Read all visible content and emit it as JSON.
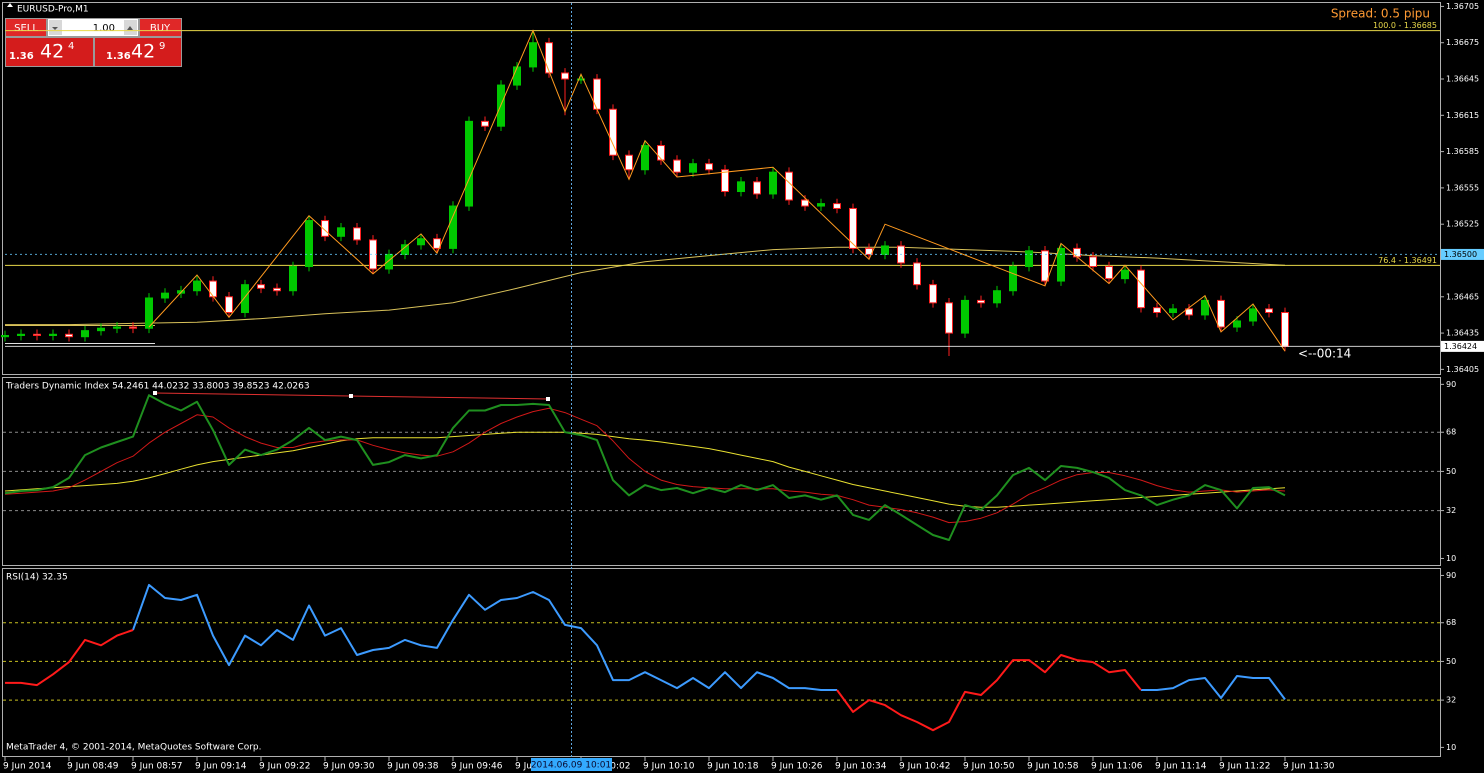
{
  "window_title": "EURUSD-Pro,M1",
  "trade_panel": {
    "sell": "SELL",
    "buy": "BUY",
    "lots": "1.00",
    "bid": {
      "big": "1.36",
      "main": "42",
      "small": "4"
    },
    "ask": {
      "big": "1.36",
      "main": "42",
      "small": "9"
    }
  },
  "spread": "Spread: 0.5 pipu",
  "countdown": "<--00:14",
  "crosshair_label": "2014.06.09 10:01",
  "copyright": "MetaTrader 4, © 2001-2014, MetaQuotes Software Corp.",
  "chart_data": [
    {
      "type": "candlestick",
      "title": "EURUSD-Pro,M1",
      "up_color": "#00c800",
      "down_color": "#ffffff",
      "down_edge": "#ff2020",
      "xlim": [
        0,
        89.6875
      ],
      "xticks": [
        {
          "value": 0,
          "label": "9 Jun 2014"
        },
        {
          "value": 4,
          "label": "9 Jun 08:49"
        },
        {
          "value": 8,
          "label": "9 Jun 08:57"
        },
        {
          "value": 12,
          "label": "9 Jun 09:14"
        },
        {
          "value": 16,
          "label": "9 Jun 09:22"
        },
        {
          "value": 20,
          "label": "9 Jun 09:30"
        },
        {
          "value": 24,
          "label": "9 Jun 09:38"
        },
        {
          "value": 28,
          "label": "9 Jun 09:46"
        },
        {
          "value": 32,
          "label": "9 Jun 09:54"
        },
        {
          "value": 36,
          "label": "9 Jun 10:02"
        },
        {
          "value": 40,
          "label": "9 Jun 10:10"
        },
        {
          "value": 44,
          "label": "9 Jun 10:18"
        },
        {
          "value": 48,
          "label": "9 Jun 10:26"
        },
        {
          "value": 52,
          "label": "9 Jun 10:34"
        },
        {
          "value": 56,
          "label": "9 Jun 10:42"
        },
        {
          "value": 60,
          "label": "9 Jun 10:50"
        },
        {
          "value": 64,
          "label": "9 Jun 10:58"
        },
        {
          "value": 68,
          "label": "9 Jun 11:06"
        },
        {
          "value": 72,
          "label": "9 Jun 11:14"
        },
        {
          "value": 76,
          "label": "9 Jun 11:22"
        },
        {
          "value": 80,
          "label": "9 Jun 11:30"
        }
      ],
      "ylim": [
        1.36402,
        1.36707
      ],
      "yticks": [
        1.36705,
        1.36675,
        1.36645,
        1.36615,
        1.36585,
        1.36555,
        1.36525,
        1.36465,
        1.36435,
        1.36405
      ],
      "grid": false,
      "open": [
        1.36432,
        1.36433,
        1.36434,
        1.36433,
        1.36434,
        1.36432,
        1.36437,
        1.36439,
        1.3644,
        1.36439,
        1.36464,
        1.36468,
        1.3647,
        1.36478,
        1.36465,
        1.36452,
        1.36475,
        1.36472,
        1.3647,
        1.3649,
        1.36528,
        1.36515,
        1.36522,
        1.36512,
        1.36488,
        1.365,
        1.36508,
        1.36513,
        1.36505,
        1.3654,
        1.3661,
        1.36606,
        1.3664,
        1.36655,
        1.36675,
        1.3665,
        1.36645,
        1.36645,
        1.3662,
        1.36582,
        1.3657,
        1.3659,
        1.36578,
        1.36568,
        1.36575,
        1.3657,
        1.36552,
        1.3656,
        1.3655,
        1.36568,
        1.36545,
        1.3654,
        1.36542,
        1.36538,
        1.36505,
        1.365,
        1.36507,
        1.36493,
        1.36475,
        1.3646,
        1.36435,
        1.36462,
        1.3646,
        1.3647,
        1.3649,
        1.36503,
        1.36478,
        1.36505,
        1.36498,
        1.3649,
        1.3648,
        1.36487,
        1.36456,
        1.36452,
        1.36455,
        1.3645,
        1.36462,
        1.3644,
        1.36445,
        1.36455,
        1.36452
      ],
      "high": [
        1.36437,
        1.36438,
        1.36438,
        1.36438,
        1.36438,
        1.36441,
        1.36443,
        1.36444,
        1.36444,
        1.36468,
        1.36472,
        1.36474,
        1.36482,
        1.36482,
        1.36469,
        1.36479,
        1.36479,
        1.36476,
        1.36494,
        1.36532,
        1.36532,
        1.36526,
        1.36526,
        1.36516,
        1.36504,
        1.36512,
        1.36517,
        1.36517,
        1.36544,
        1.36614,
        1.36614,
        1.36644,
        1.36659,
        1.36685,
        1.36679,
        1.36654,
        1.36649,
        1.36649,
        1.36624,
        1.36586,
        1.36594,
        1.36594,
        1.36582,
        1.36579,
        1.36579,
        1.36574,
        1.36564,
        1.36564,
        1.36572,
        1.36572,
        1.36549,
        1.36546,
        1.36546,
        1.36542,
        1.36509,
        1.36511,
        1.36511,
        1.36497,
        1.36479,
        1.36464,
        1.36466,
        1.36466,
        1.36474,
        1.36494,
        1.36507,
        1.36507,
        1.36509,
        1.36509,
        1.36502,
        1.36494,
        1.36491,
        1.36491,
        1.3646,
        1.36459,
        1.36459,
        1.36466,
        1.36466,
        1.36449,
        1.36459,
        1.36459,
        1.36456
      ],
      "low": [
        1.36428,
        1.36429,
        1.36429,
        1.36429,
        1.36428,
        1.36428,
        1.36433,
        1.36435,
        1.36435,
        1.36435,
        1.3646,
        1.36464,
        1.36466,
        1.36461,
        1.36448,
        1.36448,
        1.36468,
        1.36466,
        1.36466,
        1.36486,
        1.36511,
        1.36511,
        1.36508,
        1.36484,
        1.36484,
        1.36496,
        1.36504,
        1.36501,
        1.36501,
        1.36536,
        1.36602,
        1.36602,
        1.36636,
        1.36651,
        1.36646,
        1.36615,
        1.36641,
        1.36616,
        1.36578,
        1.36562,
        1.36566,
        1.36574,
        1.36564,
        1.36564,
        1.36566,
        1.36548,
        1.36548,
        1.36546,
        1.36546,
        1.36541,
        1.36536,
        1.36536,
        1.36534,
        1.36501,
        1.36496,
        1.36496,
        1.36489,
        1.36471,
        1.36456,
        1.36416,
        1.36431,
        1.36456,
        1.36456,
        1.36466,
        1.36486,
        1.36474,
        1.36474,
        1.36494,
        1.36486,
        1.36476,
        1.36476,
        1.36452,
        1.36448,
        1.36448,
        1.36446,
        1.36446,
        1.36436,
        1.36436,
        1.36441,
        1.36448,
        1.3642
      ],
      "close": [
        1.36433,
        1.36434,
        1.36433,
        1.36434,
        1.36432,
        1.36437,
        1.36439,
        1.3644,
        1.36439,
        1.36464,
        1.36468,
        1.3647,
        1.36478,
        1.36465,
        1.36452,
        1.36475,
        1.36472,
        1.3647,
        1.3649,
        1.36528,
        1.36515,
        1.36522,
        1.36512,
        1.36488,
        1.365,
        1.36508,
        1.36513,
        1.36505,
        1.3654,
        1.3661,
        1.36606,
        1.3664,
        1.36655,
        1.36675,
        1.3665,
        1.36645,
        1.36645,
        1.3662,
        1.36582,
        1.3657,
        1.3659,
        1.36578,
        1.36568,
        1.36575,
        1.3657,
        1.36552,
        1.3656,
        1.3655,
        1.36568,
        1.36545,
        1.3654,
        1.36542,
        1.36538,
        1.36505,
        1.365,
        1.36507,
        1.36493,
        1.36475,
        1.3646,
        1.36435,
        1.36462,
        1.3646,
        1.3647,
        1.3649,
        1.36503,
        1.36478,
        1.36505,
        1.36498,
        1.3649,
        1.3648,
        1.36487,
        1.36456,
        1.36452,
        1.36455,
        1.3645,
        1.36462,
        1.3644,
        1.36445,
        1.36455,
        1.36452,
        1.36424
      ],
      "ma": {
        "color": "#d9c25a",
        "x": [
          0,
          4,
          8,
          12,
          16,
          20,
          24,
          28,
          32,
          36,
          40,
          44,
          48,
          52,
          56,
          60,
          64,
          68,
          72,
          76,
          80
        ],
        "values": [
          1.36442,
          1.36442,
          1.36443,
          1.36444,
          1.36447,
          1.36451,
          1.36454,
          1.3646,
          1.36472,
          1.36485,
          1.36494,
          1.36499,
          1.36504,
          1.36506,
          1.36506,
          1.36504,
          1.36502,
          1.36499,
          1.36497,
          1.36494,
          1.36491
        ]
      },
      "zigzag": {
        "color": "#ff9a1f",
        "x": [
          9,
          12,
          14,
          19,
          23,
          26,
          27,
          33,
          35,
          36,
          39,
          40,
          42,
          48,
          54,
          55,
          65,
          66,
          69,
          70,
          73,
          75,
          76,
          78,
          80
        ],
        "values": [
          1.3644,
          1.36483,
          1.36448,
          1.36532,
          1.36484,
          1.36517,
          1.36501,
          1.36685,
          1.36618,
          1.36649,
          1.36562,
          1.36594,
          1.36564,
          1.36572,
          1.36496,
          1.36525,
          1.36474,
          1.36509,
          1.36476,
          1.36491,
          1.36446,
          1.36466,
          1.36436,
          1.36459,
          1.3642
        ]
      },
      "levels": [
        {
          "value": 1.36685,
          "label": "100.0 - 1.36685",
          "color": "#e8d84a"
        },
        {
          "value": 1.36491,
          "label": "76.4 - 1.36491",
          "color": "#e8d84a"
        }
      ],
      "price_lines": [
        {
          "value": 1.365,
          "label": "1.36500",
          "color": "#66ccff"
        },
        {
          "value": 1.36424,
          "label": "1.36424",
          "color": "#ffffff"
        }
      ]
    },
    {
      "type": "line",
      "title": "Traders Dynamic Index 54.2461 44.0232 33.8003 39.8523 42.0263",
      "ylim": [
        7,
        92
      ],
      "yticks": [
        90,
        68,
        50,
        32,
        10
      ],
      "grid": true,
      "grid_color": "#8a8a8a",
      "series": [
        {
          "color": "#e8e030",
          "values": [
            41,
            41.5,
            42,
            42.5,
            43,
            43.5,
            44,
            44.5,
            45.5,
            47,
            49,
            51,
            53,
            54.5,
            55.5,
            56.5,
            57.5,
            58.5,
            59.5,
            61,
            62.5,
            64,
            65,
            65.5,
            65.5,
            65.5,
            65.5,
            65.5,
            66,
            66.5,
            67,
            67.5,
            68,
            68,
            68,
            68,
            67.5,
            67,
            66,
            65,
            64.4,
            63.5,
            62.5,
            61.5,
            60.5,
            59,
            57.5,
            56,
            54.5,
            52,
            50,
            48,
            46,
            44,
            42.5,
            41,
            39.5,
            38,
            36.5,
            35,
            34,
            33.5,
            33.5,
            34,
            34.5,
            35,
            35.5,
            36,
            36.5,
            37,
            37.5,
            38,
            38.5,
            39,
            39.5,
            40,
            40.5,
            41,
            41.5,
            42,
            42.5
          ]
        },
        {
          "color": "#d01818",
          "values": [
            39.5,
            40,
            40.5,
            41,
            42.5,
            46,
            50,
            54,
            57,
            63,
            68,
            72,
            76,
            75,
            70,
            66,
            63,
            61,
            61,
            63,
            64,
            64.5,
            64.5,
            62,
            60,
            58.5,
            57.5,
            57,
            59,
            63,
            68,
            72,
            75,
            77.5,
            79,
            77,
            74,
            71,
            64,
            56,
            50,
            46,
            44,
            43,
            42.5,
            42,
            42,
            42,
            42,
            41,
            40.5,
            39.5,
            39,
            37,
            34.5,
            33.5,
            32.5,
            31,
            29,
            26.5,
            27,
            28.5,
            31,
            35,
            39.5,
            42.5,
            46,
            48.5,
            49.5,
            49.5,
            48,
            46,
            43.5,
            41.5,
            40.5,
            41,
            41.5,
            40.5,
            41,
            41.5,
            41
          ]
        },
        {
          "color": "#1f8f1f",
          "values": [
            40,
            41,
            41.4,
            42.8,
            47,
            57.5,
            61,
            63.5,
            66,
            85,
            81,
            78,
            82,
            69,
            53,
            60,
            57.5,
            60,
            64.4,
            70,
            64.4,
            66,
            64.4,
            53,
            54.3,
            57.5,
            56,
            57.5,
            70,
            78,
            78,
            80.5,
            80.5,
            81,
            80.5,
            68,
            66.7,
            64.4,
            46,
            39,
            43.7,
            41.4,
            42.4,
            40,
            42.4,
            40.5,
            43.7,
            41.4,
            43.7,
            37.8,
            39,
            37,
            39,
            30,
            27.7,
            34.5,
            30,
            25.4,
            20.8,
            18.5,
            34.5,
            32.3,
            39,
            48.3,
            51.6,
            46,
            52.5,
            51.6,
            49.7,
            47,
            41.4,
            39,
            34.5,
            37,
            39,
            43.7,
            41.4,
            33,
            42.4,
            42.8,
            39
          ]
        }
      ]
    },
    {
      "type": "line",
      "title": "RSI(14) 32.35",
      "ylim": [
        6,
        93
      ],
      "yticks": [
        90,
        68,
        50,
        32,
        10
      ],
      "grid": true,
      "grid_color": "#c8c020",
      "series": [
        {
          "color": "#3d9bff",
          "values": [
            null,
            null,
            null,
            null,
            null,
            null,
            null,
            null,
            64.6,
            85.6,
            79.5,
            78.6,
            81,
            62,
            48.3,
            62,
            57.5,
            64.6,
            60,
            76,
            62,
            65.5,
            53,
            55.3,
            56.3,
            60,
            57.5,
            56.3,
            69.3,
            81,
            74,
            78.6,
            79.5,
            82.3,
            78.6,
            67,
            65.5,
            57.5,
            41.3,
            41.3,
            45,
            41.3,
            37.6,
            42.3,
            37.6,
            45,
            37.6,
            45,
            42.3,
            37.6,
            37.6,
            36.7,
            36.7,
            null,
            null,
            null,
            null,
            null,
            null,
            null,
            null,
            null,
            null,
            null,
            null,
            null,
            null,
            null,
            null,
            null,
            null,
            36.7,
            36.7,
            37.6,
            41.3,
            42.3,
            33,
            43.2,
            42.3,
            42.3,
            32.35
          ]
        },
        {
          "color": "#ff1a1a",
          "values": [
            40,
            40,
            39,
            44,
            49.7,
            60,
            57.5,
            62,
            64.6,
            null,
            null,
            null,
            null,
            null,
            null,
            null,
            null,
            null,
            null,
            null,
            null,
            null,
            null,
            null,
            null,
            null,
            null,
            null,
            null,
            null,
            null,
            null,
            null,
            null,
            null,
            null,
            null,
            null,
            null,
            null,
            null,
            null,
            null,
            null,
            null,
            null,
            null,
            null,
            null,
            null,
            null,
            null,
            36.7,
            26.5,
            32,
            29.7,
            25,
            21.8,
            18,
            21.8,
            35.8,
            34.4,
            41.3,
            50.6,
            50.6,
            45,
            53,
            50.6,
            49.7,
            45,
            46,
            36.7,
            null,
            null,
            null,
            null,
            null,
            null,
            null,
            null,
            null
          ]
        }
      ]
    }
  ]
}
